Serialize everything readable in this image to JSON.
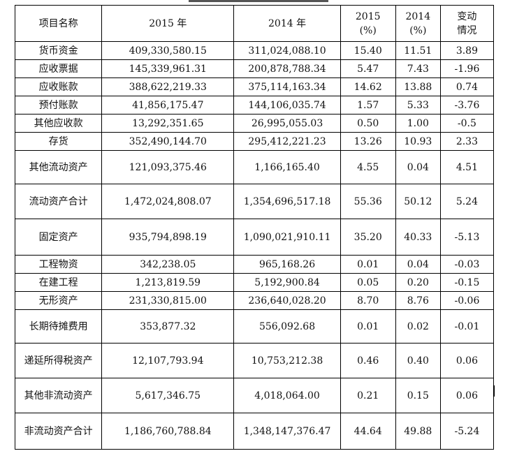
{
  "header": {
    "name": "项目名称",
    "col2015": "2015 年",
    "col2014": "2014 年",
    "pct2015": "2015\n(%)",
    "pct2014": "2014\n(%)",
    "change": "变动\n情况"
  },
  "rows": [
    {
      "name": "货币资金",
      "v2015": "409,330,580.15",
      "v2014": "311,024,088.10",
      "p2015": "15.40",
      "p2014": "11.51",
      "chg": "3.89"
    },
    {
      "name": "应收票据",
      "v2015": "145,339,961.31",
      "v2014": "200,878,788.34",
      "p2015": "5.47",
      "p2014": "7.43",
      "chg": "-1.96"
    },
    {
      "name": "应收账款",
      "v2015": "388,622,219.33",
      "v2014": "375,114,163.34",
      "p2015": "14.62",
      "p2014": "13.88",
      "chg": "0.74"
    },
    {
      "name": "预付账款",
      "v2015": "41,856,175.47",
      "v2014": "144,106,035.74",
      "p2015": "1.57",
      "p2014": "5.33",
      "chg": "-3.76"
    },
    {
      "name": "其他应收款",
      "v2015": "13,292,351.65",
      "v2014": "26,995,055.03",
      "p2015": "0.50",
      "p2014": "1.00",
      "chg": "-0.5"
    },
    {
      "name": "存货",
      "v2015": "352,490,144.70",
      "v2014": "295,412,221.23",
      "p2015": "13.26",
      "p2014": "10.93",
      "chg": "2.33"
    },
    {
      "name": "其他流动资产",
      "v2015": "121,093,375.46",
      "v2014": "1,166,165.40",
      "p2015": "4.55",
      "p2014": "0.04",
      "chg": "4.51"
    },
    {
      "name": "流动资产合计",
      "v2015": "1,472,024,808.07",
      "v2014": "1,354,696,517.18",
      "p2015": "55.36",
      "p2014": "50.12",
      "chg": "5.24"
    },
    {
      "name": "固定资产",
      "v2015": "935,794,898.19",
      "v2014": "1,090,021,910.11",
      "p2015": "35.20",
      "p2014": "40.33",
      "chg": "-5.13"
    },
    {
      "name": "工程物资",
      "v2015": "342,238.05",
      "v2014": "965,168.26",
      "p2015": "0.01",
      "p2014": "0.04",
      "chg": "-0.03"
    },
    {
      "name": "在建工程",
      "v2015": "1,213,819.59",
      "v2014": "5,192,900.84",
      "p2015": "0.05",
      "p2014": "0.20",
      "chg": "-0.15"
    },
    {
      "name": "无形资产",
      "v2015": "231,330,815.00",
      "v2014": "236,640,028.20",
      "p2015": "8.70",
      "p2014": "8.76",
      "chg": "-0.06"
    },
    {
      "name": "长期待摊费用",
      "v2015": "353,877.32",
      "v2014": "556,092.68",
      "p2015": "0.01",
      "p2014": "0.02",
      "chg": "-0.01"
    },
    {
      "name": "递延所得税资产",
      "v2015": "12,107,793.94",
      "v2014": "10,753,212.38",
      "p2015": "0.46",
      "p2014": "0.40",
      "chg": "0.06"
    },
    {
      "name": "其他非流动资产",
      "v2015": "5,617,346.75",
      "v2014": "4,018,064.00",
      "p2015": "0.21",
      "p2014": "0.15",
      "chg": "0.06"
    },
    {
      "name": "非流动资产合计",
      "v2015": "1,186,760,788.84",
      "v2014": "1,348,147,376.47",
      "p2015": "44.64",
      "p2014": "49.88",
      "chg": "-5.24"
    }
  ]
}
